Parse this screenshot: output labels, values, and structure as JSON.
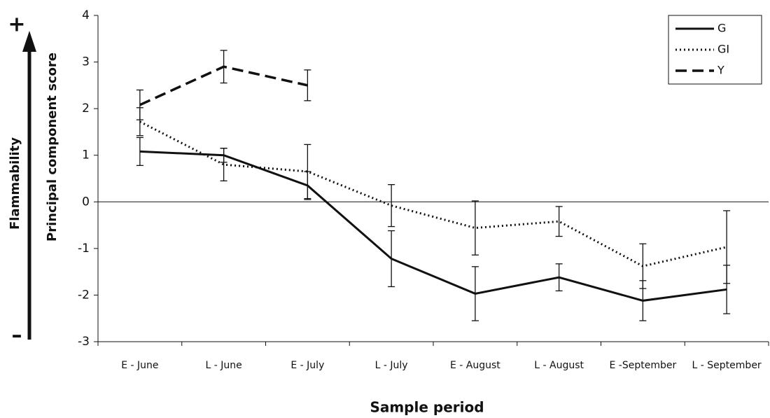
{
  "chart_data": {
    "type": "line",
    "categories": [
      "E - June",
      "L - June",
      "E - July",
      "L - July",
      "E - August",
      "L - August",
      "E -September",
      "L - September"
    ],
    "series": [
      {
        "name": "G",
        "color": "#111111",
        "dash": "solid",
        "values": [
          1.08,
          1.0,
          0.35,
          -1.22,
          -1.97,
          -1.62,
          -2.12,
          -1.88
        ],
        "errors": [
          0.3,
          0.15,
          0.3,
          0.6,
          0.58,
          0.29,
          0.43,
          0.52
        ]
      },
      {
        "name": "GI",
        "color": "#111111",
        "dash": "dotted",
        "values": [
          1.72,
          0.8,
          0.65,
          -0.08,
          -0.56,
          -0.42,
          -1.38,
          -0.97
        ],
        "errors": [
          0.3,
          0.35,
          0.58,
          0.45,
          0.58,
          0.32,
          0.48,
          0.78
        ]
      },
      {
        "name": "Y",
        "color": "#111111",
        "dash": "dashed",
        "values": [
          2.08,
          2.9,
          2.5,
          null,
          null,
          null,
          null,
          null
        ],
        "errors": [
          0.32,
          0.35,
          0.33,
          null,
          null,
          null,
          null,
          null
        ]
      }
    ],
    "ylim": [
      -3,
      4
    ],
    "yticks": [
      4,
      3,
      2,
      1,
      0,
      -1,
      -2,
      -3
    ],
    "y_label": "Principal component score",
    "x_label": "Sample period",
    "arrow_label": "Flammability",
    "arrow_top": "+",
    "arrow_bottom": "–",
    "legend": "top-right",
    "grid": false
  }
}
